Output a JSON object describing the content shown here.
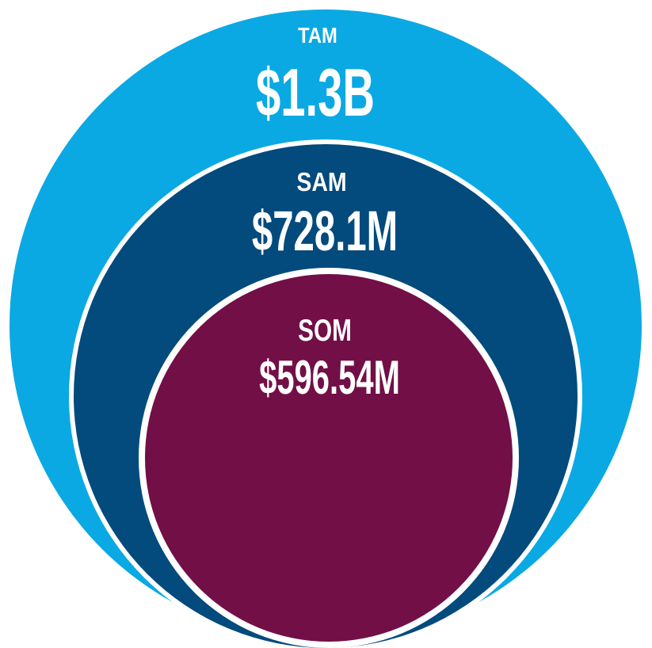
{
  "diagram": {
    "tam": {
      "label": "TAM",
      "value": "$1.3B",
      "color": "#0aa9e3"
    },
    "sam": {
      "label": "SAM",
      "value": "$728.1M",
      "color": "#034a7d"
    },
    "som": {
      "label": "SOM",
      "value": "$596.54M",
      "color": "#720f46"
    },
    "separator_color": "#ffffff"
  }
}
